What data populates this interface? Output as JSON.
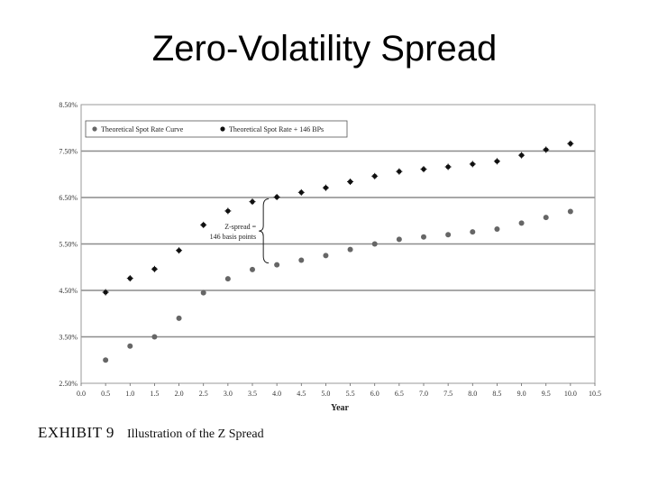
{
  "slide": {
    "title": "Zero-Volatility Spread",
    "exhibit": "EXHIBIT 9",
    "caption": "Illustration of the Z Spread"
  },
  "chart_data": {
    "type": "scatter",
    "xlabel": "Year",
    "ylabel": "",
    "xlim": [
      0,
      10.5
    ],
    "ylim": [
      2.5,
      8.5
    ],
    "x_ticks": [
      "0.0",
      "0.5",
      "1.0",
      "1.5",
      "2.0",
      "2.5",
      "3.0",
      "3.5",
      "4.0",
      "4.5",
      "5.0",
      "5.5",
      "6.0",
      "6.5",
      "7.0",
      "7.5",
      "8.0",
      "8.5",
      "9.0",
      "9.5",
      "10.0",
      "10.5"
    ],
    "y_ticks": [
      "2.50%",
      "3.50%",
      "4.50%",
      "5.50%",
      "6.50%",
      "7.50%",
      "8.50%"
    ],
    "grid": "horizontal",
    "legend_position": "top-left",
    "series": [
      {
        "name": "Theoretical Spot Rate Curve",
        "color": "#666666",
        "x": [
          0.5,
          1.0,
          1.5,
          2.0,
          2.5,
          3.0,
          3.5,
          4.0,
          4.5,
          5.0,
          5.5,
          6.0,
          6.5,
          7.0,
          7.5,
          8.0,
          8.5,
          9.0,
          9.5,
          10.0
        ],
        "y": [
          3.0,
          3.3,
          3.5,
          3.9,
          4.45,
          4.75,
          4.95,
          5.05,
          5.15,
          5.25,
          5.38,
          5.5,
          5.6,
          5.65,
          5.7,
          5.76,
          5.82,
          5.95,
          6.07,
          6.2
        ]
      },
      {
        "name": "Theoretical Spot Rate + 146 BPs",
        "color": "#111111",
        "x": [
          0.5,
          1.0,
          1.5,
          2.0,
          2.5,
          3.0,
          3.5,
          4.0,
          4.5,
          5.0,
          5.5,
          6.0,
          6.5,
          7.0,
          7.5,
          8.0,
          8.5,
          9.0,
          9.5,
          10.0
        ],
        "y": [
          4.46,
          4.76,
          4.96,
          5.36,
          5.91,
          6.21,
          6.41,
          6.51,
          6.61,
          6.71,
          6.84,
          6.96,
          7.06,
          7.11,
          7.16,
          7.22,
          7.28,
          7.41,
          7.53,
          7.66
        ]
      }
    ],
    "annotations": [
      {
        "text": "Z-spread =",
        "x": 4.0,
        "y_from": 5.05,
        "y_to": 6.51
      },
      {
        "text": "146 basis points"
      }
    ]
  }
}
